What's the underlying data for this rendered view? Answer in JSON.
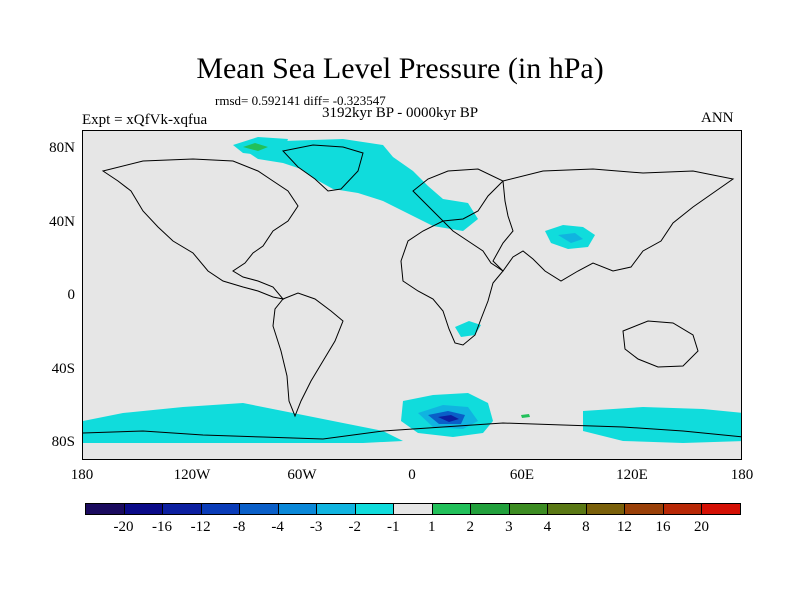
{
  "title": "Mean Sea Level Pressure (in hPa)",
  "stats_line": "rmsd= 0.592141 diff= -0.323547",
  "period_line": "3192kyr BP - 0000kyr BP",
  "experiment": "Expt = xQfVk-xqfua",
  "season": "ANN",
  "y_axis": {
    "ticks": [
      "80N",
      "40N",
      "0",
      "40S",
      "80S"
    ]
  },
  "x_axis": {
    "ticks": [
      "180",
      "120W",
      "60W",
      "0",
      "60E",
      "120E",
      "180"
    ]
  },
  "legend": {
    "colors": [
      "#1a0a5e",
      "#0a0a88",
      "#0c1fa0",
      "#0a3cb8",
      "#0a5fc8",
      "#0a88d8",
      "#10b4e0",
      "#10dcdc",
      "#e6e6e6",
      "#22c05a",
      "#22a03c",
      "#3c8c22",
      "#5a7814",
      "#7a600a",
      "#9a4008",
      "#b82806",
      "#d41004"
    ],
    "labels": [
      "-20",
      "-16",
      "-12",
      "-8",
      "-4",
      "-3",
      "-2",
      "-1",
      "1",
      "2",
      "3",
      "4",
      "8",
      "12",
      "16",
      "20"
    ]
  },
  "colors": {
    "cyan": "#10dcdc",
    "mid_blue": "#10b4e0",
    "blue": "#0a5fc8",
    "dark_blue": "#0c1fa0",
    "green": "#22c05a",
    "background": "#e6e6e6"
  }
}
